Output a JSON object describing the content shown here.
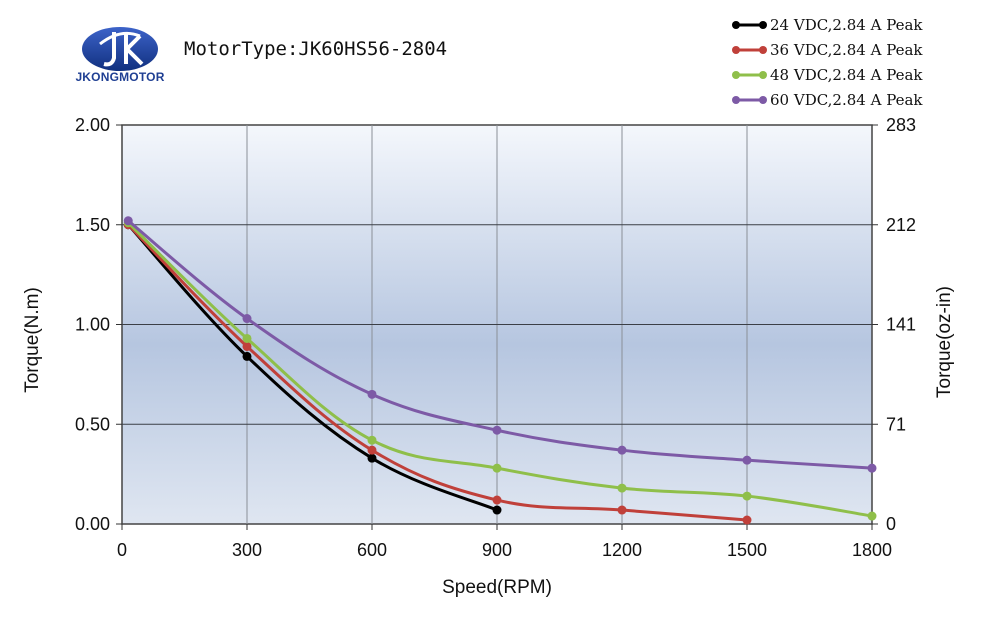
{
  "header": {
    "logo_text": "JKONGMOTOR",
    "motor_type": "MotorType:JK60HS56-2804"
  },
  "chart_data": {
    "type": "line",
    "xlabel": "Speed(RPM)",
    "ylabel": "Torque(N.m)",
    "y2label": "Torque(oz-in)",
    "xlim": [
      0,
      1800
    ],
    "ylim": [
      0,
      2.0
    ],
    "xticks": [
      "0",
      "300",
      "600",
      "900",
      "1200",
      "1500",
      "1800"
    ],
    "yticks": [
      "0.00",
      "0.50",
      "1.00",
      "1.50",
      "2.00"
    ],
    "y2ticks": [
      "0",
      "71",
      "141",
      "212",
      "283"
    ],
    "grid": true,
    "legend_position": "top-right",
    "series": [
      {
        "name": "24 VDC,2.84 A Peak",
        "color": "#000000",
        "x": [
          15,
          300,
          600,
          900
        ],
        "y": [
          1.5,
          0.84,
          0.33,
          0.07
        ]
      },
      {
        "name": "36 VDC,2.84 A Peak",
        "color": "#c0403a",
        "x": [
          15,
          300,
          600,
          900,
          1200,
          1500
        ],
        "y": [
          1.5,
          0.89,
          0.37,
          0.12,
          0.07,
          0.02
        ]
      },
      {
        "name": "48 VDC,2.84 A Peak",
        "color": "#8fbf4a",
        "x": [
          15,
          300,
          600,
          900,
          1200,
          1500,
          1800
        ],
        "y": [
          1.51,
          0.93,
          0.42,
          0.28,
          0.18,
          0.14,
          0.04
        ]
      },
      {
        "name": "60 VDC,2.84 A Peak",
        "color": "#7d5aa6",
        "x": [
          15,
          300,
          600,
          900,
          1200,
          1500,
          1800
        ],
        "y": [
          1.52,
          1.03,
          0.65,
          0.47,
          0.37,
          0.32,
          0.28
        ]
      }
    ]
  }
}
